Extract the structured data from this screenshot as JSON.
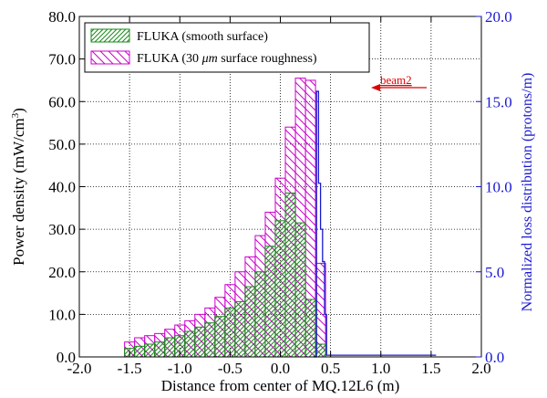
{
  "chart_data": {
    "type": "bar",
    "title": "",
    "xlabel": "Distance from center of MQ.12L6 (m)",
    "ylabel": "Power density (mW/cm",
    "ylabel_sup": "3",
    "ylabel_end": ")",
    "y2label": "Normalized loss distribution (protons/m)",
    "xlim": [
      -2.0,
      2.0
    ],
    "ylim": [
      0,
      80
    ],
    "y2lim": [
      0,
      20
    ],
    "xticks": [
      "-2.0",
      "-1.5",
      "-1.0",
      "-0.5",
      "0.0",
      "0.5",
      "1.0",
      "1.5",
      "2.0"
    ],
    "yticks": [
      "0.0",
      "10.0",
      "20.0",
      "30.0",
      "40.0",
      "50.0",
      "60.0",
      "70.0",
      "80.0"
    ],
    "y2ticks": [
      "0.0",
      "5.0",
      "10.0",
      "15.0",
      "20.0"
    ],
    "bin_width": 0.1,
    "bin_start": -1.55,
    "grid": true,
    "legend_position": "top-left",
    "series": [
      {
        "name": "FLUKA (smooth surface)",
        "color": "#1a8a1a",
        "values": [
          2.0,
          2.5,
          3.0,
          3.5,
          4.5,
          5.0,
          6.0,
          7.0,
          8.0,
          9.5,
          11.5,
          13.0,
          16.5,
          20.0,
          26.0,
          32.0,
          38.5,
          31.5,
          13.5,
          3.0
        ]
      },
      {
        "name": "FLUKA (30 μm surface roughness)",
        "name_pre": "FLUKA (30 ",
        "name_mu": "μm",
        "name_post": " surface roughness)",
        "color": "#cc00cc",
        "values": [
          3.5,
          4.5,
          5.0,
          5.5,
          6.5,
          7.5,
          8.5,
          10.0,
          11.5,
          14.0,
          17.0,
          20.0,
          23.5,
          28.5,
          34.0,
          42.0,
          54.0,
          65.5,
          65.0,
          22.0
        ]
      }
    ],
    "loss_distribution": {
      "axis": "right",
      "color": "#1a1ad0",
      "x": [
        0.33,
        0.36,
        0.36,
        0.38,
        0.38,
        0.4,
        0.4,
        0.42,
        0.42,
        0.44,
        0.44,
        0.46,
        0.46,
        1.55
      ],
      "y": [
        0,
        0,
        15.6,
        15.6,
        10.2,
        10.2,
        7.5,
        7.5,
        5.6,
        5.6,
        2.5,
        2.5,
        0.1,
        0.1
      ]
    },
    "annotation": {
      "text": "beam2",
      "color": "#e00000",
      "arrow": "left"
    }
  }
}
